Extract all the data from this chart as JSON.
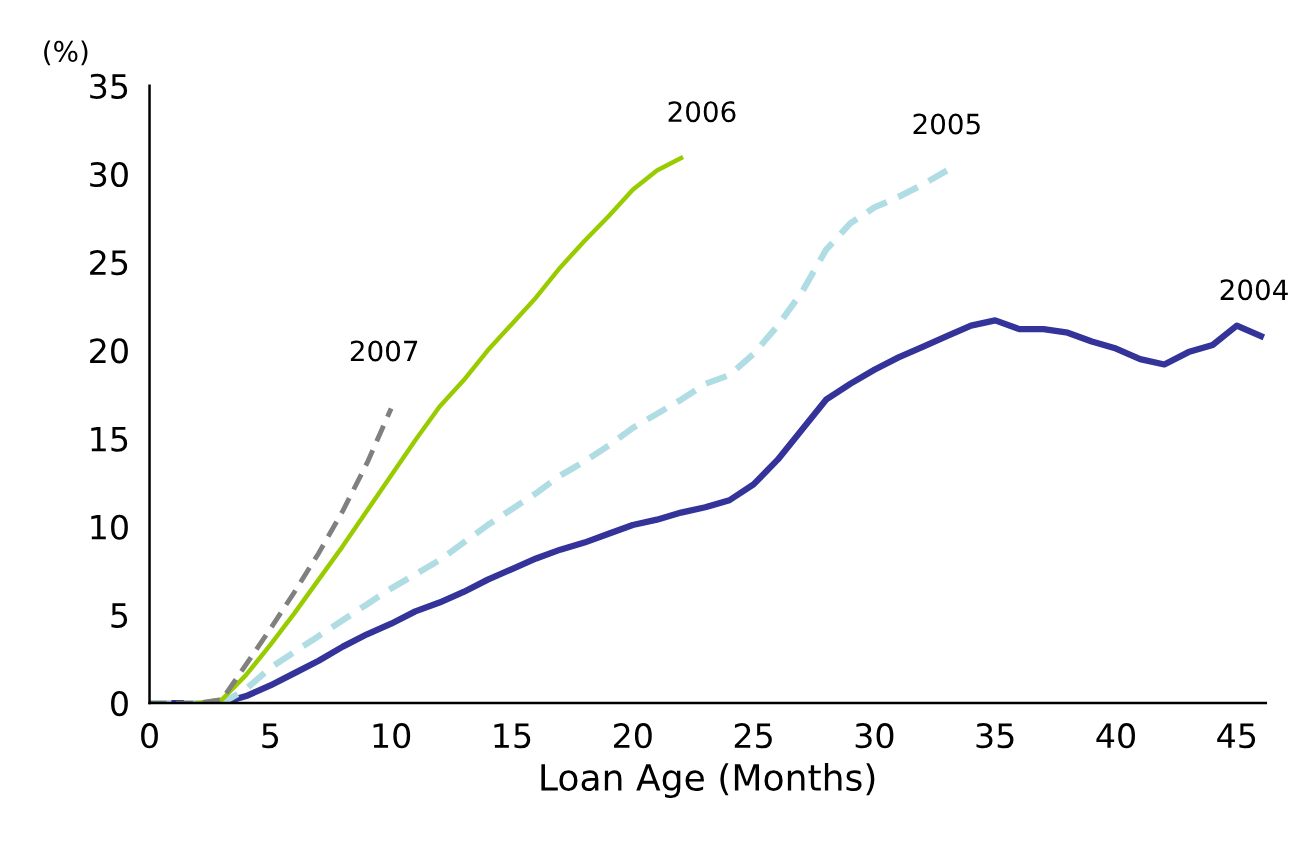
{
  "chart_data": {
    "type": "line",
    "xlabel": "Loan Age (Months)",
    "ylabel": "(%)",
    "xlim": [
      0,
      46.2
    ],
    "xticks": [
      0,
      5,
      10,
      15,
      20,
      25,
      30,
      35,
      40,
      45
    ],
    "ylim": [
      0,
      35
    ],
    "yticks": [
      0,
      5,
      10,
      15,
      20,
      25,
      30,
      35
    ],
    "grid": false,
    "legend": false,
    "marker": "none",
    "series": [
      {
        "name": "2004",
        "color": "#333399",
        "line_style": "solid",
        "x": [
          0,
          1,
          2,
          3,
          4,
          5,
          6,
          7,
          8,
          9,
          10,
          11,
          12,
          13,
          14,
          15,
          16,
          17,
          18,
          19,
          20,
          21,
          22,
          23,
          24,
          25,
          26,
          27,
          28,
          29,
          30,
          31,
          32,
          33,
          34,
          35,
          36,
          37,
          38,
          39,
          40,
          41,
          42,
          43,
          44,
          45,
          46
        ],
        "values": [
          0,
          0,
          0,
          0,
          0.4,
          1.0,
          1.7,
          2.4,
          3.2,
          3.9,
          4.5,
          5.2,
          5.7,
          6.3,
          7.0,
          7.6,
          8.2,
          8.7,
          9.1,
          9.6,
          10.1,
          10.4,
          10.8,
          11.1,
          11.5,
          12.4,
          13.8,
          15.5,
          17.2,
          18.1,
          18.9,
          19.6,
          20.2,
          20.8,
          21.4,
          21.7,
          21.2,
          21.2,
          21.0,
          20.5,
          20.1,
          19.5,
          19.2,
          19.9,
          20.3,
          21.4,
          20.8
        ]
      },
      {
        "name": "2005",
        "color": "#b0dde3",
        "line_style": "dashed",
        "x": [
          0,
          1,
          2,
          3,
          4,
          5,
          6,
          7,
          8,
          9,
          10,
          11,
          12,
          13,
          14,
          15,
          16,
          17,
          18,
          19,
          20,
          21,
          22,
          23,
          24,
          25,
          26,
          27,
          28,
          29,
          30,
          31,
          32,
          33
        ],
        "values": [
          0,
          0,
          0,
          0,
          0.8,
          2.0,
          2.9,
          3.8,
          4.7,
          5.6,
          6.5,
          7.3,
          8.1,
          9.1,
          10.1,
          11.0,
          11.9,
          12.9,
          13.7,
          14.6,
          15.6,
          16.4,
          17.2,
          18.1,
          18.6,
          19.8,
          21.4,
          23.3,
          25.7,
          27.2,
          28.1,
          28.7,
          29.4,
          30.2
        ]
      },
      {
        "name": "2006",
        "color": "#99cc00",
        "line_style": "solid",
        "x": [
          2,
          3,
          4,
          5,
          6,
          7,
          8,
          9,
          10,
          11,
          12,
          13,
          14,
          15,
          16,
          17,
          18,
          19,
          20,
          21,
          22
        ],
        "values": [
          0,
          0.2,
          1.6,
          3.3,
          5.1,
          7.0,
          8.9,
          10.9,
          12.9,
          14.9,
          16.8,
          18.3,
          20.0,
          21.5,
          23.0,
          24.7,
          26.2,
          27.6,
          29.1,
          30.2,
          30.9
        ]
      },
      {
        "name": "2007",
        "color": "#808080",
        "line_style": "dashed",
        "x": [
          0,
          1,
          2,
          3,
          4,
          5,
          6,
          7,
          8,
          9,
          10
        ],
        "values": [
          0,
          0,
          0,
          0.2,
          2.2,
          4.2,
          6.3,
          8.5,
          10.9,
          13.6,
          16.7
        ]
      }
    ]
  }
}
